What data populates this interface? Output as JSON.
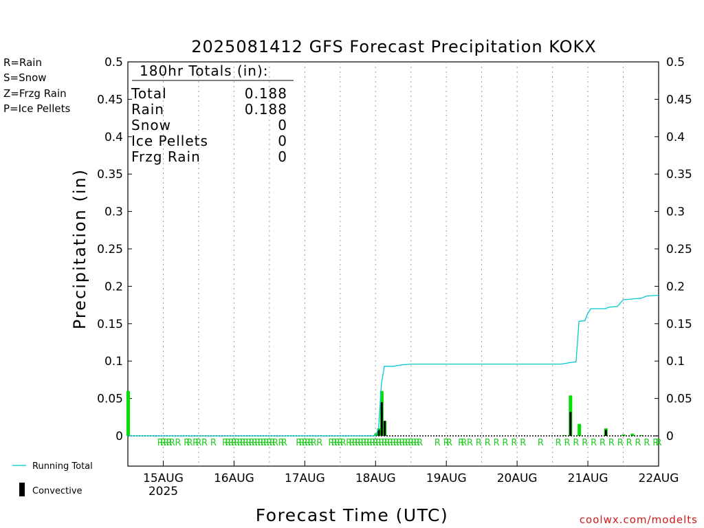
{
  "chart_data": {
    "type": "bar",
    "title": "2025081412 GFS Forecast Precipitation KOKX",
    "xlabel": "Forecast Time (UTC)",
    "ylabel": "Precipitation (in)",
    "ylim": [
      0,
      0.5
    ],
    "yticks": [
      "0",
      "0.05",
      "0.1",
      "0.15",
      "0.2",
      "0.25",
      "0.3",
      "0.35",
      "0.4",
      "0.45",
      "0.5"
    ],
    "x_start": "2025-08-14 12Z",
    "x_end": "2025-08-22 00Z",
    "xticks": [
      {
        "day": "2025-08-15",
        "label": "15AUG",
        "sublabel": "2025"
      },
      {
        "day": "2025-08-16",
        "label": "16AUG",
        "sublabel": ""
      },
      {
        "day": "2025-08-17",
        "label": "17AUG",
        "sublabel": ""
      },
      {
        "day": "2025-08-18",
        "label": "18AUG",
        "sublabel": ""
      },
      {
        "day": "2025-08-19",
        "label": "19AUG",
        "sublabel": ""
      },
      {
        "day": "2025-08-20",
        "label": "20AUG",
        "sublabel": ""
      },
      {
        "day": "2025-08-21",
        "label": "21AUG",
        "sublabel": ""
      },
      {
        "day": "2025-08-22",
        "label": "22AUG",
        "sublabel": ""
      }
    ],
    "grid": "vertical dotted at 00Z and 12Z",
    "precip_type_legend": [
      {
        "label": "R=Rain",
        "color": "#00cc00"
      },
      {
        "label": "S=Snow",
        "color": "#3333dd"
      },
      {
        "label": "Z=Frzg Rain",
        "color": "#ff8c33"
      },
      {
        "label": "P=Ice Pellets",
        "color": "#e0288c"
      }
    ],
    "series_legend": {
      "running_total": "Running Total",
      "convective": "Convective"
    },
    "totals_box": {
      "header": "180hr Totals (in):",
      "rows": [
        {
          "label": "Total",
          "value": "0.188"
        },
        {
          "label": "Rain",
          "value": "0.188"
        },
        {
          "label": "Snow",
          "value": "0"
        },
        {
          "label": "Ice Pellets",
          "value": "0"
        },
        {
          "label": "Frzg Rain",
          "value": "0"
        }
      ]
    },
    "series": [
      {
        "name": "Rain",
        "color": "#00dd00",
        "points": [
          {
            "time": "2025-08-14 12Z",
            "value": 0.06
          },
          {
            "time": "2025-08-18 00Z",
            "value": 0.003
          },
          {
            "time": "2025-08-18 01Z",
            "value": 0.01
          },
          {
            "time": "2025-08-18 02Z",
            "value": 0.06
          },
          {
            "time": "2025-08-18 03Z",
            "value": 0.02
          },
          {
            "time": "2025-08-20 16Z",
            "value": 0.001
          },
          {
            "time": "2025-08-20 18Z",
            "value": 0.054
          },
          {
            "time": "2025-08-20 21Z",
            "value": 0.016
          },
          {
            "time": "2025-08-21 06Z",
            "value": 0.01
          },
          {
            "time": "2025-08-21 12Z",
            "value": 0.002
          },
          {
            "time": "2025-08-21 15Z",
            "value": 0.003
          },
          {
            "time": "2025-08-21 18Z",
            "value": 0.001
          }
        ]
      },
      {
        "name": "Convective",
        "color": "#000000",
        "points": [
          {
            "time": "2025-08-18 01Z",
            "value": 0.008
          },
          {
            "time": "2025-08-18 02Z",
            "value": 0.045
          },
          {
            "time": "2025-08-18 03Z",
            "value": 0.02
          },
          {
            "time": "2025-08-20 18Z",
            "value": 0.032
          },
          {
            "time": "2025-08-21 06Z",
            "value": 0.008
          }
        ]
      },
      {
        "name": "Running Total",
        "color": "#00c8d2",
        "points": [
          {
            "time": "2025-08-14 12Z",
            "value": 0
          },
          {
            "time": "2025-08-18 00Z",
            "value": 0
          },
          {
            "time": "2025-08-18 01Z",
            "value": 0.01
          },
          {
            "time": "2025-08-18 02Z",
            "value": 0.07
          },
          {
            "time": "2025-08-18 03Z",
            "value": 0.093
          },
          {
            "time": "2025-08-18 06Z",
            "value": 0.093
          },
          {
            "time": "2025-08-18 09Z",
            "value": 0.095
          },
          {
            "time": "2025-08-18 12Z",
            "value": 0.096
          },
          {
            "time": "2025-08-20 15Z",
            "value": 0.096
          },
          {
            "time": "2025-08-20 18Z",
            "value": 0.098
          },
          {
            "time": "2025-08-20 20Z",
            "value": 0.099
          },
          {
            "time": "2025-08-20 21Z",
            "value": 0.153
          },
          {
            "time": "2025-08-20 23Z",
            "value": 0.154
          },
          {
            "time": "2025-08-21 00Z",
            "value": 0.164
          },
          {
            "time": "2025-08-21 01Z",
            "value": 0.17
          },
          {
            "time": "2025-08-21 04Z",
            "value": 0.17
          },
          {
            "time": "2025-08-21 06Z",
            "value": 0.17
          },
          {
            "time": "2025-08-21 07Z",
            "value": 0.172
          },
          {
            "time": "2025-08-21 10Z",
            "value": 0.173
          },
          {
            "time": "2025-08-21 12Z",
            "value": 0.182
          },
          {
            "time": "2025-08-21 15Z",
            "value": 0.183
          },
          {
            "time": "2025-08-21 18Z",
            "value": 0.184
          },
          {
            "time": "2025-08-21 20Z",
            "value": 0.187
          },
          {
            "time": "2025-08-22 00Z",
            "value": 0.188
          }
        ]
      }
    ],
    "type_markers": {
      "letter": "R",
      "times": [
        "2025-08-14 23Z",
        "2025-08-15 00Z",
        "2025-08-15 01Z",
        "2025-08-15 02Z",
        "2025-08-15 03Z",
        "2025-08-15 05Z",
        "2025-08-15 08Z",
        "2025-08-15 09Z",
        "2025-08-15 11Z",
        "2025-08-15 12Z",
        "2025-08-15 14Z",
        "2025-08-15 17Z",
        "2025-08-15 21Z",
        "2025-08-15 22Z",
        "2025-08-15 23Z",
        "2025-08-16 00Z",
        "2025-08-16 01Z",
        "2025-08-16 02Z",
        "2025-08-16 03Z",
        "2025-08-16 04Z",
        "2025-08-16 05Z",
        "2025-08-16 06Z",
        "2025-08-16 07Z",
        "2025-08-16 08Z",
        "2025-08-16 09Z",
        "2025-08-16 10Z",
        "2025-08-16 11Z",
        "2025-08-16 12Z",
        "2025-08-16 13Z",
        "2025-08-16 14Z",
        "2025-08-16 16Z",
        "2025-08-16 17Z",
        "2025-08-16 22Z",
        "2025-08-16 23Z",
        "2025-08-17 00Z",
        "2025-08-17 01Z",
        "2025-08-17 02Z",
        "2025-08-17 03Z",
        "2025-08-17 05Z",
        "2025-08-17 09Z",
        "2025-08-17 10Z",
        "2025-08-17 11Z",
        "2025-08-17 12Z",
        "2025-08-17 13Z",
        "2025-08-17 15Z",
        "2025-08-17 16Z",
        "2025-08-17 17Z",
        "2025-08-17 18Z",
        "2025-08-17 19Z",
        "2025-08-17 20Z",
        "2025-08-17 21Z",
        "2025-08-17 22Z",
        "2025-08-17 23Z",
        "2025-08-18 00Z",
        "2025-08-18 01Z",
        "2025-08-18 02Z",
        "2025-08-18 03Z",
        "2025-08-18 04Z",
        "2025-08-18 05Z",
        "2025-08-18 06Z",
        "2025-08-18 07Z",
        "2025-08-18 08Z",
        "2025-08-18 09Z",
        "2025-08-18 10Z",
        "2025-08-18 11Z",
        "2025-08-18 12Z",
        "2025-08-18 13Z",
        "2025-08-18 14Z",
        "2025-08-18 15Z",
        "2025-08-18 21Z",
        "2025-08-19 00Z",
        "2025-08-19 01Z",
        "2025-08-19 05Z",
        "2025-08-19 06Z",
        "2025-08-19 08Z",
        "2025-08-19 11Z",
        "2025-08-19 14Z",
        "2025-08-19 17Z",
        "2025-08-19 20Z",
        "2025-08-19 23Z",
        "2025-08-20 02Z",
        "2025-08-20 08Z",
        "2025-08-20 14Z",
        "2025-08-20 17Z",
        "2025-08-20 20Z",
        "2025-08-20 23Z",
        "2025-08-21 02Z",
        "2025-08-21 05Z",
        "2025-08-21 08Z",
        "2025-08-21 11Z",
        "2025-08-21 14Z",
        "2025-08-21 17Z",
        "2025-08-21 20Z",
        "2025-08-21 23Z",
        "2025-08-22 00Z"
      ]
    }
  },
  "watermark": "coolwx.com/modelts"
}
